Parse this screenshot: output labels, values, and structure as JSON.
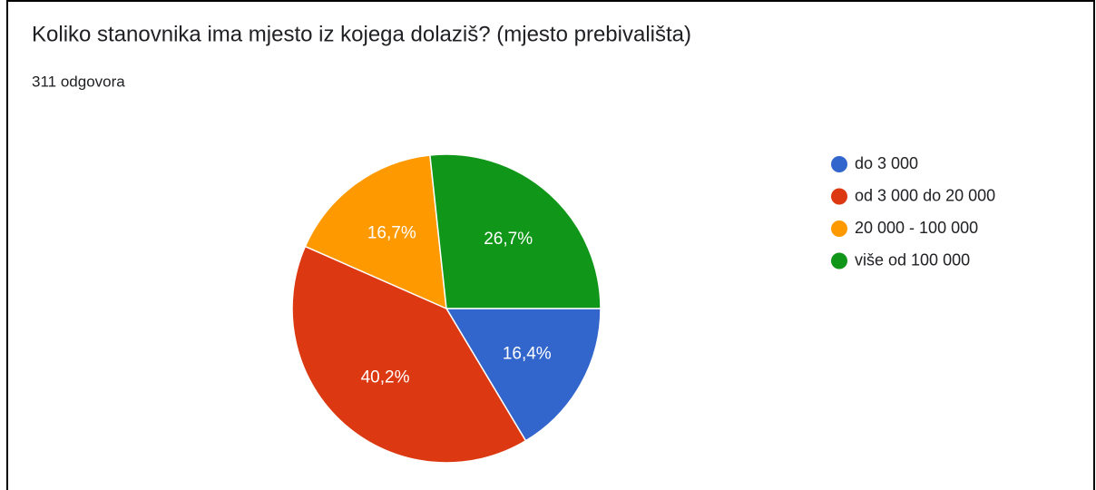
{
  "chart_data": {
    "type": "pie",
    "title": "Koliko stanovnika ima mjesto iz kojega dolaziš? (mjesto prebivališta)",
    "subtitle": "311 odgovora",
    "categories": [
      "do 3 000",
      "od 3 000 do 20 000",
      "20 000 - 100 000",
      "više od 100 000"
    ],
    "values": [
      16.4,
      40.2,
      16.7,
      26.7
    ],
    "value_labels": [
      "16,4%",
      "40,2%",
      "16,7%",
      "26,7%"
    ],
    "colors": [
      "#3366cc",
      "#dc3912",
      "#ff9900",
      "#109618"
    ],
    "legend": "right"
  }
}
